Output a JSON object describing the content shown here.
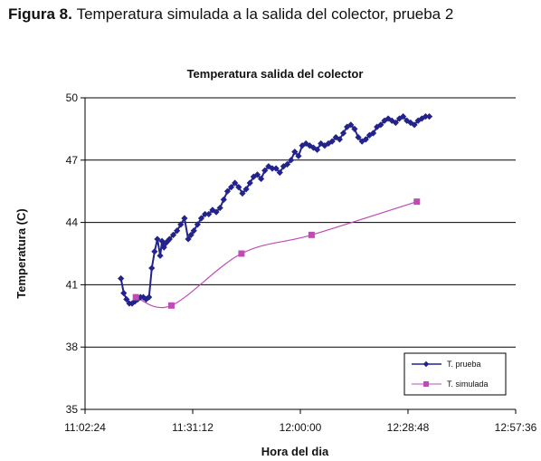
{
  "figure_caption": {
    "label": "Figura 8. ",
    "text": "Temperatura simulada a la salida del colector, prueba 2"
  },
  "chart_data": {
    "type": "line",
    "title": "Temperatura salida del colector",
    "xlabel": "Hora del dia",
    "ylabel": "Temperatura (C)",
    "x_ticks": [
      "11:02:24",
      "11:31:12",
      "12:00:00",
      "12:28:48",
      "12:57:36"
    ],
    "y_ticks": [
      "35",
      "38",
      "41",
      "44",
      "47",
      "50"
    ],
    "xlim": [
      "11:02:24",
      "12:57:36"
    ],
    "ylim": [
      35,
      50
    ],
    "grid": true,
    "legend_position": "bottom-right",
    "series": [
      {
        "name": "T. prueba",
        "color": "#23238e",
        "marker": "diamond",
        "x": [
          "11:12:00",
          "11:12:45",
          "11:13:30",
          "11:14:15",
          "11:15:00",
          "11:15:45",
          "11:16:30",
          "11:17:15",
          "11:18:00",
          "11:18:45",
          "11:19:30",
          "11:20:15",
          "11:21:00",
          "11:21:45",
          "11:22:30",
          "11:23:00",
          "11:23:30",
          "11:24:00",
          "11:24:30",
          "11:25:00",
          "11:26:00",
          "11:27:00",
          "11:28:00",
          "11:29:00",
          "11:30:00",
          "11:30:45",
          "11:31:30",
          "11:32:30",
          "11:33:30",
          "11:34:30",
          "11:35:30",
          "11:36:30",
          "11:37:30",
          "11:38:30",
          "11:39:30",
          "11:40:30",
          "11:41:30",
          "11:42:30",
          "11:43:30",
          "11:44:30",
          "11:45:30",
          "11:46:30",
          "11:47:30",
          "11:48:30",
          "11:49:30",
          "11:50:30",
          "11:51:30",
          "11:52:30",
          "11:53:30",
          "11:54:30",
          "11:55:30",
          "11:56:30",
          "11:57:30",
          "11:58:30",
          "11:59:30",
          "12:00:30",
          "12:01:30",
          "12:02:30",
          "12:03:30",
          "12:04:30",
          "12:05:30",
          "12:06:30",
          "12:07:30",
          "12:08:30",
          "12:09:30",
          "12:10:30",
          "12:11:30",
          "12:12:30",
          "12:13:30",
          "12:14:30",
          "12:15:30",
          "12:16:30",
          "12:17:30",
          "12:18:30",
          "12:19:30",
          "12:20:30",
          "12:21:30",
          "12:22:30",
          "12:23:30",
          "12:24:30",
          "12:25:30",
          "12:26:30",
          "12:27:30",
          "12:28:30",
          "12:29:30",
          "12:30:30",
          "12:31:30",
          "12:32:30",
          "12:33:30",
          "12:34:30"
        ],
        "values": [
          41.3,
          40.6,
          40.3,
          40.1,
          40.1,
          40.2,
          40.3,
          40.4,
          40.4,
          40.3,
          40.4,
          41.8,
          42.6,
          43.2,
          42.4,
          43.1,
          42.8,
          43.0,
          43.1,
          43.2,
          43.4,
          43.6,
          43.9,
          44.2,
          43.2,
          43.4,
          43.6,
          43.9,
          44.2,
          44.4,
          44.4,
          44.6,
          44.5,
          44.7,
          45.1,
          45.5,
          45.7,
          45.9,
          45.7,
          45.4,
          45.6,
          45.9,
          46.2,
          46.3,
          46.1,
          46.5,
          46.7,
          46.6,
          46.6,
          46.4,
          46.7,
          46.8,
          47.0,
          47.4,
          47.2,
          47.7,
          47.8,
          47.7,
          47.6,
          47.5,
          47.8,
          47.7,
          47.8,
          47.9,
          48.1,
          48.0,
          48.3,
          48.6,
          48.7,
          48.5,
          48.1,
          47.9,
          48.0,
          48.2,
          48.3,
          48.6,
          48.7,
          48.9,
          49.0,
          48.9,
          48.8,
          49.0,
          49.1,
          48.9,
          48.8,
          48.7,
          48.9,
          49.0,
          49.1,
          49.1
        ]
      },
      {
        "name": "T. simulada",
        "color": "#c04bb4",
        "marker": "square",
        "x": [
          "11:16:00",
          "11:25:30",
          "11:44:15",
          "12:03:00",
          "12:31:10"
        ],
        "values": [
          40.4,
          40.0,
          42.5,
          43.4,
          45.0
        ]
      }
    ]
  }
}
